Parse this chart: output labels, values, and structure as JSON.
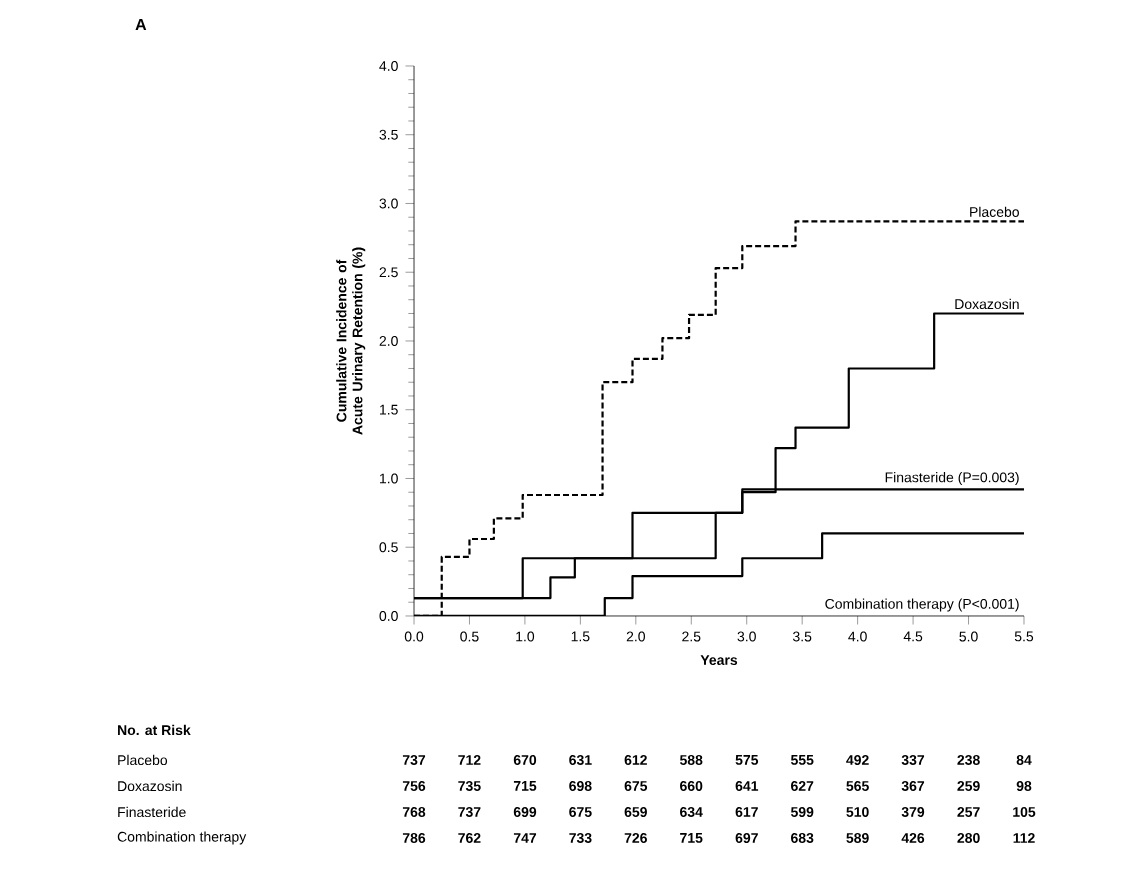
{
  "chart_data": {
    "type": "step",
    "title": "A",
    "xlabel": "Years",
    "ylabel": "Cumulative Incidence of Acute Urinary Retention (%)",
    "xlim": [
      0,
      5.5
    ],
    "ylim": [
      0,
      4.0
    ],
    "xticks": [
      {
        "value": 0,
        "label": "0.0"
      },
      {
        "value": 0.5,
        "label": "0.5"
      },
      {
        "value": 1,
        "label": "1.0"
      },
      {
        "value": 1.5,
        "label": "1.5"
      },
      {
        "value": 2,
        "label": "2.0"
      },
      {
        "value": 2.5,
        "label": "2.5"
      },
      {
        "value": 3,
        "label": "3.0"
      },
      {
        "value": 3.5,
        "label": "3.5"
      },
      {
        "value": 4,
        "label": "4.0"
      },
      {
        "value": 4.5,
        "label": "4.5"
      },
      {
        "value": 5,
        "label": "5.0"
      },
      {
        "value": 5.5,
        "label": "5.5"
      }
    ],
    "yticks": [
      {
        "value": 0,
        "label": "0.0"
      },
      {
        "value": 0.5,
        "label": "0.5"
      },
      {
        "value": 1,
        "label": "1.0"
      },
      {
        "value": 1.5,
        "label": "1.5"
      },
      {
        "value": 2,
        "label": "2.0"
      },
      {
        "value": 2.5,
        "label": "2.5"
      },
      {
        "value": 3,
        "label": "3.0"
      },
      {
        "value": 3.5,
        "label": "3.5"
      },
      {
        "value": 4,
        "label": "4.0"
      }
    ],
    "grid": false,
    "legend": false,
    "marker": "none",
    "series": [
      {
        "name": "Placebo",
        "color": "#000000",
        "line_style": "dashed",
        "x": [
          0,
          0.25,
          0.5,
          0.72,
          0.98,
          1.7,
          1.97,
          2.24,
          2.48,
          2.72,
          2.96,
          3.44,
          5.5
        ],
        "values": [
          0,
          0.43,
          0.56,
          0.71,
          0.88,
          1.7,
          1.87,
          2.02,
          2.19,
          2.53,
          2.69,
          2.87,
          2.87
        ]
      },
      {
        "name": "Doxazosin",
        "color": "#000000",
        "line_style": "solid",
        "x": [
          0,
          0.98,
          1.97,
          2.96,
          3.26,
          3.44,
          3.92,
          4.69,
          5.5
        ],
        "values": [
          0.13,
          0.42,
          0.75,
          0.9,
          1.22,
          1.37,
          1.8,
          2.2,
          2.2
        ]
      },
      {
        "name": "Finasteride (P=0.003)",
        "color": "#000000",
        "line_style": "solid",
        "x": [
          0,
          1.23,
          1.45,
          2.72,
          2.96,
          5.5
        ],
        "values": [
          0.13,
          0.28,
          0.42,
          0.75,
          0.92,
          0.92
        ]
      },
      {
        "name": "Combination therapy (P<0.001)",
        "color": "#000000",
        "line_style": "solid",
        "x": [
          0,
          1.72,
          1.97,
          2.96,
          3.68,
          5.5
        ],
        "values": [
          0,
          0.13,
          0.29,
          0.42,
          0.6,
          0.6
        ]
      }
    ],
    "annotations": [
      "No. at Risk",
      "Placebo",
      "737",
      "712",
      "670",
      "631",
      "612",
      "588",
      "575",
      "555",
      "492",
      "337",
      "238",
      "84",
      "Doxazosin",
      "756",
      "735",
      "715",
      "698",
      "675",
      "660",
      "641",
      "627",
      "565",
      "367",
      "259",
      "98",
      "Finasteride",
      "768",
      "737",
      "699",
      "675",
      "659",
      "634",
      "617",
      "599",
      "510",
      "379",
      "257",
      "105",
      "Combination therapy",
      "786",
      "762",
      "747",
      "733",
      "726",
      "715",
      "697",
      "683",
      "589",
      "426",
      "280",
      "112"
    ]
  }
}
